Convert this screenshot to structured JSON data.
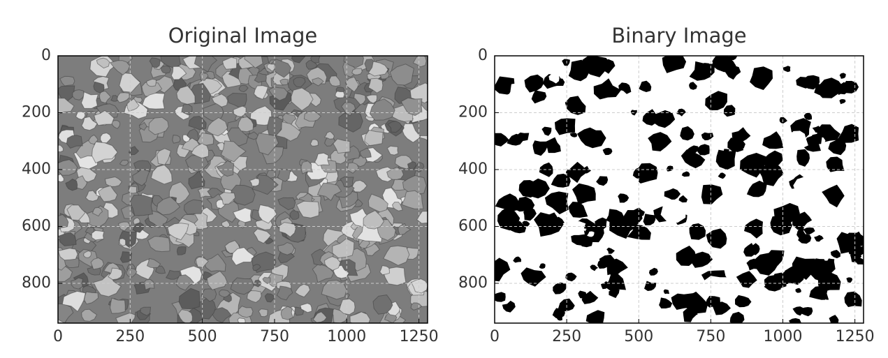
{
  "chart_data": [
    {
      "type": "image",
      "title": "Original Image",
      "style": "grayscale",
      "xlim": [
        0,
        1280
      ],
      "ylim": [
        940,
        0
      ],
      "xticks": [
        0,
        250,
        500,
        750,
        1000,
        1250
      ],
      "yticks": [
        0,
        200,
        400,
        600,
        800
      ],
      "grid": true
    },
    {
      "type": "image",
      "title": "Binary Image",
      "style": "binary",
      "xlim": [
        0,
        1280
      ],
      "ylim": [
        940,
        0
      ],
      "xticks": [
        0,
        250,
        500,
        750,
        1000,
        1250
      ],
      "yticks": [
        0,
        200,
        400,
        600,
        800
      ],
      "grid": true
    }
  ]
}
